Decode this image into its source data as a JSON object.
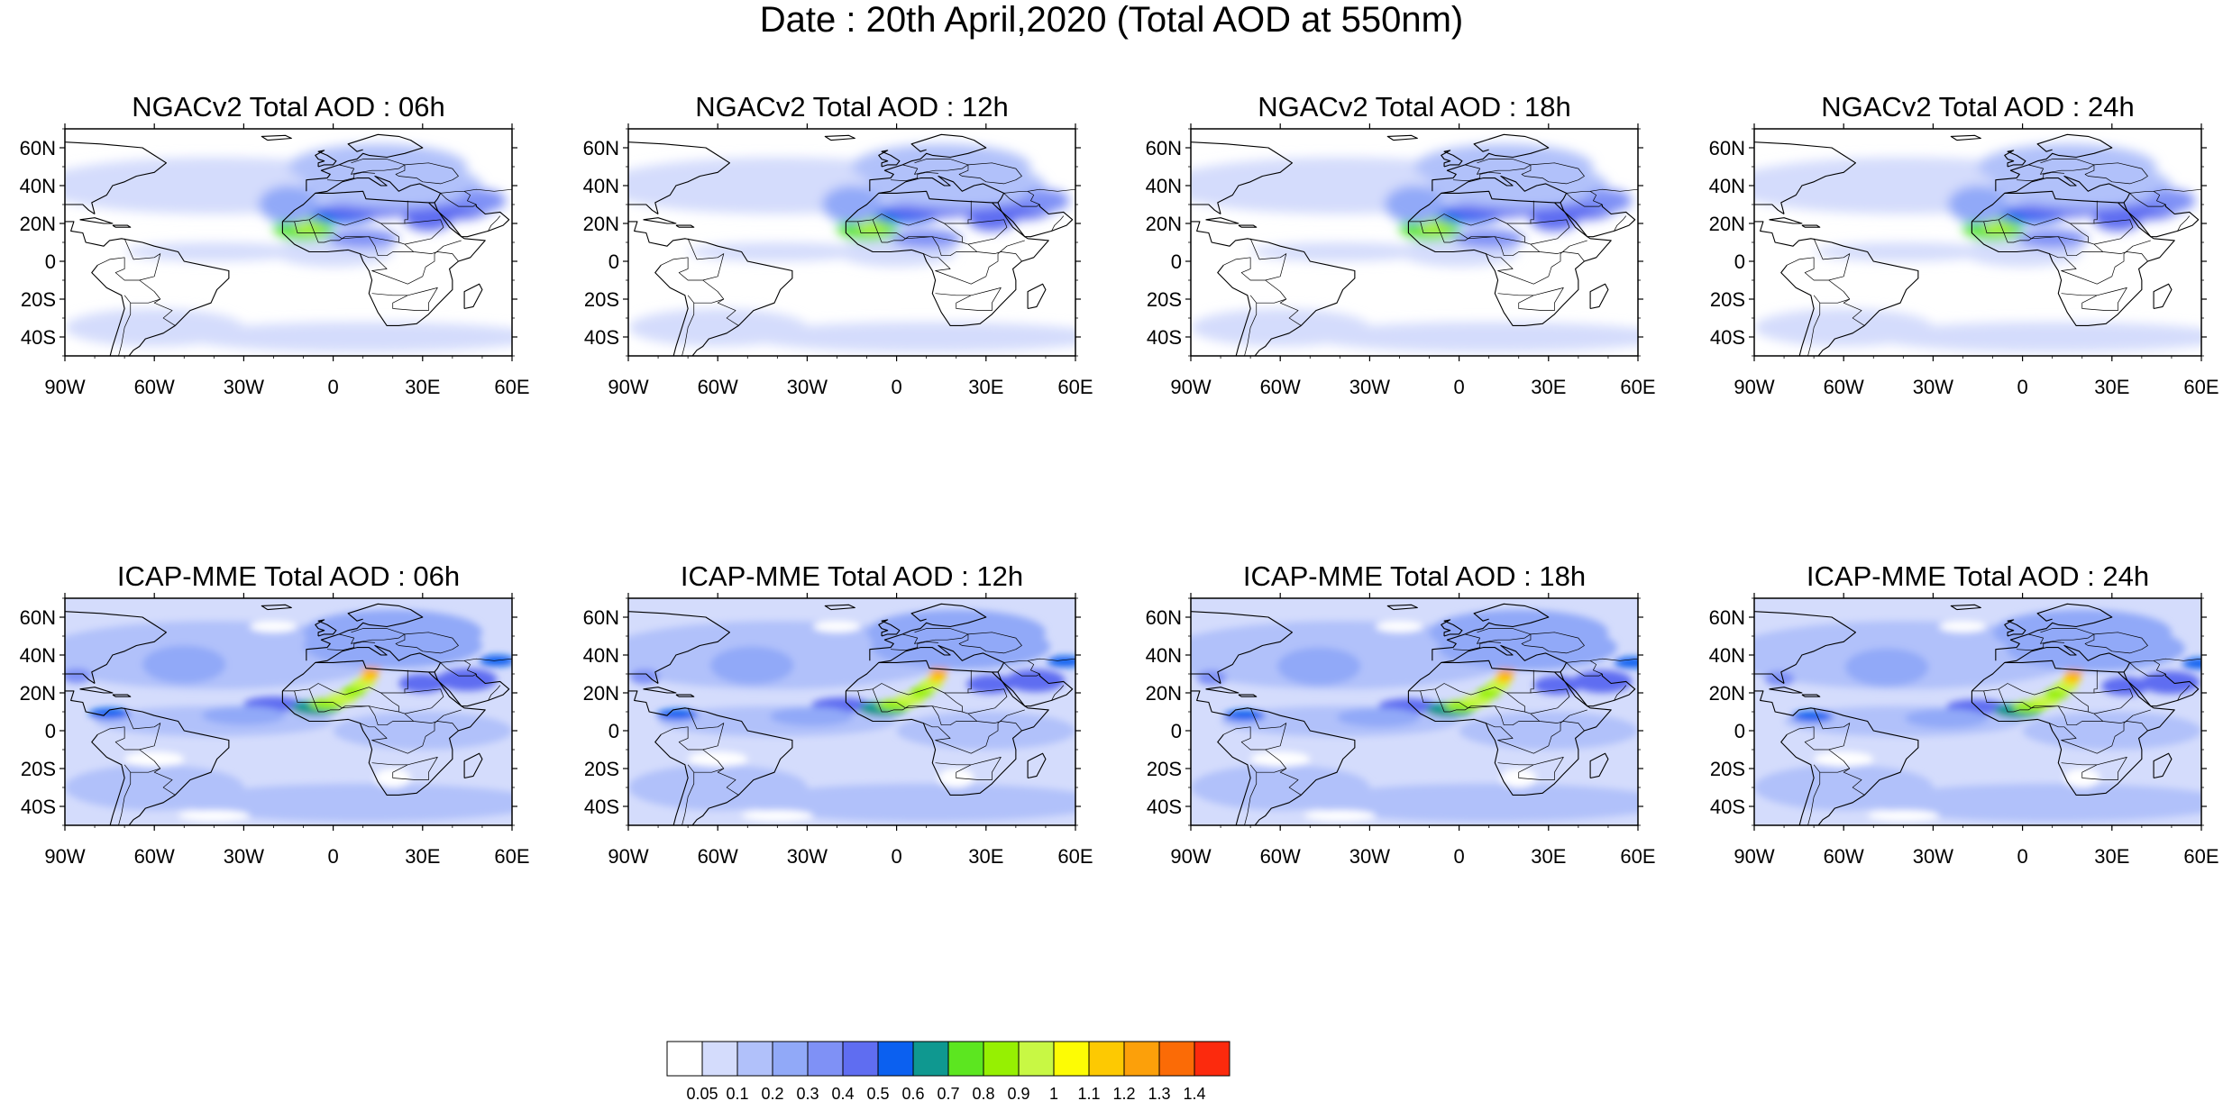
{
  "title": "Date : 20th April,2020 (Total AOD at 550nm)",
  "map_extent": {
    "lon_min": -90,
    "lon_max": 60,
    "lat_min": -50,
    "lat_max": 70
  },
  "lon_ticks": [
    {
      "value": -90,
      "label": "90W"
    },
    {
      "value": -60,
      "label": "60W"
    },
    {
      "value": -30,
      "label": "30W"
    },
    {
      "value": 0,
      "label": "0"
    },
    {
      "value": 30,
      "label": "30E"
    },
    {
      "value": 60,
      "label": "60E"
    }
  ],
  "lat_ticks": [
    {
      "value": 60,
      "label": "60N"
    },
    {
      "value": 40,
      "label": "40N"
    },
    {
      "value": 20,
      "label": "20N"
    },
    {
      "value": 0,
      "label": "0"
    },
    {
      "value": -20,
      "label": "20S"
    },
    {
      "value": -40,
      "label": "40S"
    }
  ],
  "panels": [
    {
      "title": "NGACv2 Total AOD : 06h",
      "model": "NGACv2",
      "hour": 6
    },
    {
      "title": "NGACv2 Total AOD : 12h",
      "model": "NGACv2",
      "hour": 12
    },
    {
      "title": "NGACv2 Total AOD : 18h",
      "model": "NGACv2",
      "hour": 18
    },
    {
      "title": "NGACv2 Total AOD : 24h",
      "model": "NGACv2",
      "hour": 24
    },
    {
      "title": "ICAP-MME Total AOD : 06h",
      "model": "ICAP-MME",
      "hour": 6
    },
    {
      "title": "ICAP-MME Total AOD : 12h",
      "model": "ICAP-MME",
      "hour": 12
    },
    {
      "title": "ICAP-MME Total AOD : 18h",
      "model": "ICAP-MME",
      "hour": 18
    },
    {
      "title": "ICAP-MME Total AOD : 24h",
      "model": "ICAP-MME",
      "hour": 24
    }
  ],
  "colorbar": {
    "levels": [
      "0.05",
      "0.1",
      "0.2",
      "0.3",
      "0.4",
      "0.5",
      "0.6",
      "0.7",
      "0.8",
      "0.9",
      "1",
      "1.1",
      "1.2",
      "1.3",
      "1.4"
    ],
    "colors": [
      "#ffffff",
      "#d4dcfc",
      "#b1c1fa",
      "#91a9f8",
      "#7f91f6",
      "#5f6df1",
      "#0b60f0",
      "#0f9890",
      "#5ce620",
      "#96f002",
      "#c8f844",
      "#fdfc04",
      "#fdc902",
      "#fca00a",
      "#fb6b06",
      "#fc2a0d"
    ]
  }
}
